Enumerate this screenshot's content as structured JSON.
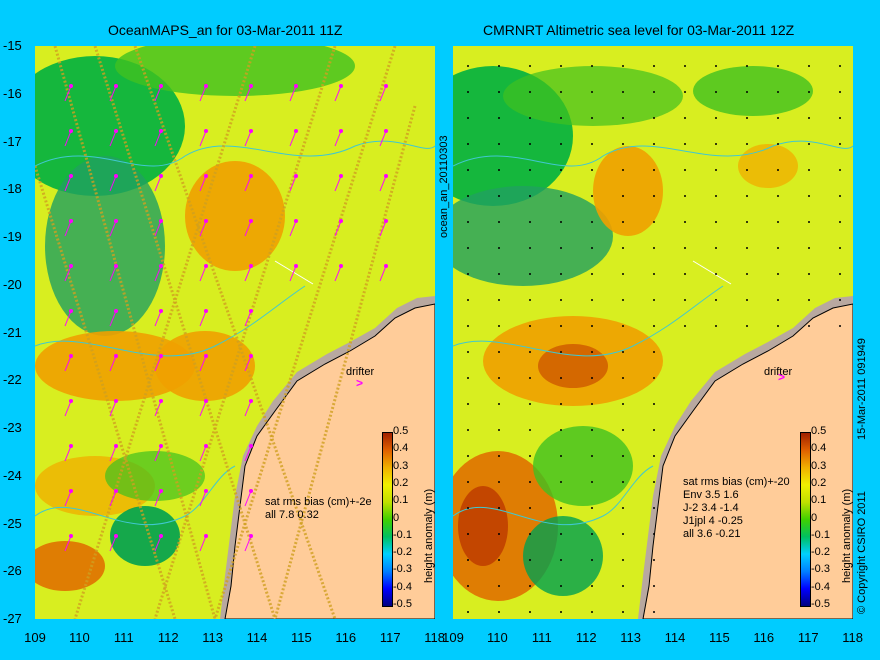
{
  "left_panel": {
    "title": "OceanMAPS_an for 03-Mar-2011 11Z",
    "stats_header": "sat rms bias (cm)+-2e",
    "stats_lines": [
      "all 7.8 0.32"
    ],
    "side_label": "ocean_an_20110303"
  },
  "right_panel": {
    "title": "CMRNRT Altimetric sea level  for 03-Mar-2011 12Z",
    "stats_header": "sat rms bias (cm)+-20",
    "stats_lines": [
      "Env    3.5 1.6",
      "J-2    3.4 -1.4",
      "J1jpl 4 -0.25",
      "all 3.6 -0.21"
    ],
    "side_label": "15-Mar-2011 091949",
    "copyright": "© Copyright CSIRO 2011"
  },
  "drifter_label": "drifter",
  "lat_ticks": [
    "-15",
    "-16",
    "-17",
    "-18",
    "-19",
    "-20",
    "-21",
    "-22",
    "-23",
    "-24",
    "-25",
    "-26",
    "-27"
  ],
  "lon_ticks": [
    "109",
    "110",
    "111",
    "112",
    "113",
    "114",
    "115",
    "116",
    "117",
    "118"
  ],
  "colorbar": {
    "label": "height anomaly (m)",
    "ticks": [
      "0.5",
      "0.4",
      "0.3",
      "0.2",
      "0.1",
      "0",
      "-0.1",
      "-0.2",
      "-0.3",
      "-0.4",
      "-0.5"
    ],
    "colors": [
      "#00007f",
      "#0000ff",
      "#0080ff",
      "#00d0ff",
      "#00c060",
      "#40d000",
      "#c0e000",
      "#f0f000",
      "#f0b000",
      "#e06000",
      "#a02000"
    ]
  },
  "map_colors": {
    "land": "#ffcc99",
    "coast_shelf": "#b8a8a0",
    "ocean_base": "#d8ee20",
    "contour": "#40c8d0",
    "vector": "#ff00ff"
  }
}
